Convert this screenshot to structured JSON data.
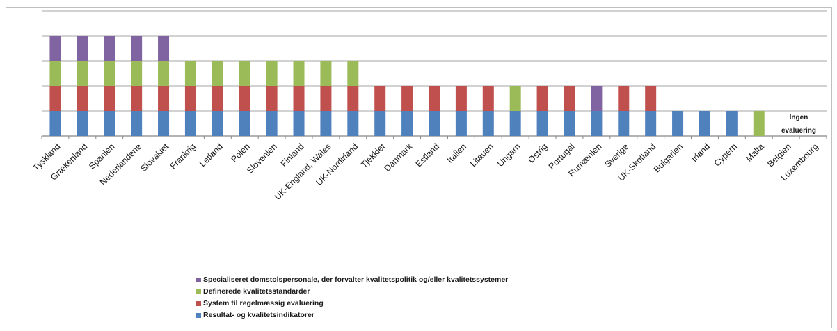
{
  "chart_data": {
    "type": "bar",
    "stacked": true,
    "categories": [
      "Tyskland",
      "Grækenland",
      "Spanien",
      "Nederlandene",
      "Slovakiet",
      "Frankrig",
      "Letland",
      "Polen",
      "Slovenien",
      "Finland",
      "UK-England, Wales",
      "UK-Nordirland",
      "Tjekkiet",
      "Danmark",
      "Estland",
      "Italien",
      "Litauen",
      "Ungarn",
      "Østrig",
      "Portugal",
      "Rumænien",
      "Sverige",
      "UK-Skotland",
      "Bulgarien",
      "Irland",
      "Cypern",
      "Malta",
      "Belgien",
      "Luxembourg"
    ],
    "series": [
      {
        "name": "Resultat- og kvalitetsindikatorer",
        "color": "#4f81bd",
        "values": [
          1,
          1,
          1,
          1,
          1,
          1,
          1,
          1,
          1,
          1,
          1,
          1,
          1,
          1,
          1,
          1,
          1,
          1,
          1,
          1,
          1,
          1,
          1,
          1,
          1,
          1,
          0,
          0,
          0
        ]
      },
      {
        "name": "System til regelmæssig evaluering",
        "color": "#c0504d",
        "values": [
          1,
          1,
          1,
          1,
          1,
          1,
          1,
          1,
          1,
          1,
          1,
          1,
          1,
          1,
          1,
          1,
          1,
          0,
          1,
          1,
          0,
          1,
          1,
          0,
          0,
          0,
          0,
          0,
          0
        ]
      },
      {
        "name": "Definerede kvalitetsstandarder",
        "color": "#9bbb59",
        "values": [
          1,
          1,
          1,
          1,
          1,
          1,
          1,
          1,
          1,
          1,
          1,
          1,
          0,
          0,
          0,
          0,
          0,
          1,
          0,
          0,
          0,
          0,
          0,
          0,
          0,
          0,
          1,
          0,
          0
        ]
      },
      {
        "name": "Specialiseret domstolspersonale, der forvalter kvalitetspolitik og/eller kvalitetssystemer",
        "color": "#8064a2",
        "values": [
          1,
          1,
          1,
          1,
          1,
          0,
          0,
          0,
          0,
          0,
          0,
          0,
          0,
          0,
          0,
          0,
          0,
          0,
          0,
          0,
          1,
          0,
          0,
          0,
          0,
          0,
          0,
          0,
          0
        ]
      }
    ],
    "legend_order": [
      3,
      2,
      1,
      0
    ],
    "ylim": [
      0,
      4
    ],
    "grid": true,
    "legend_position": "bottom",
    "annotation": {
      "line1": "Ingen",
      "line2": "evaluering"
    }
  }
}
